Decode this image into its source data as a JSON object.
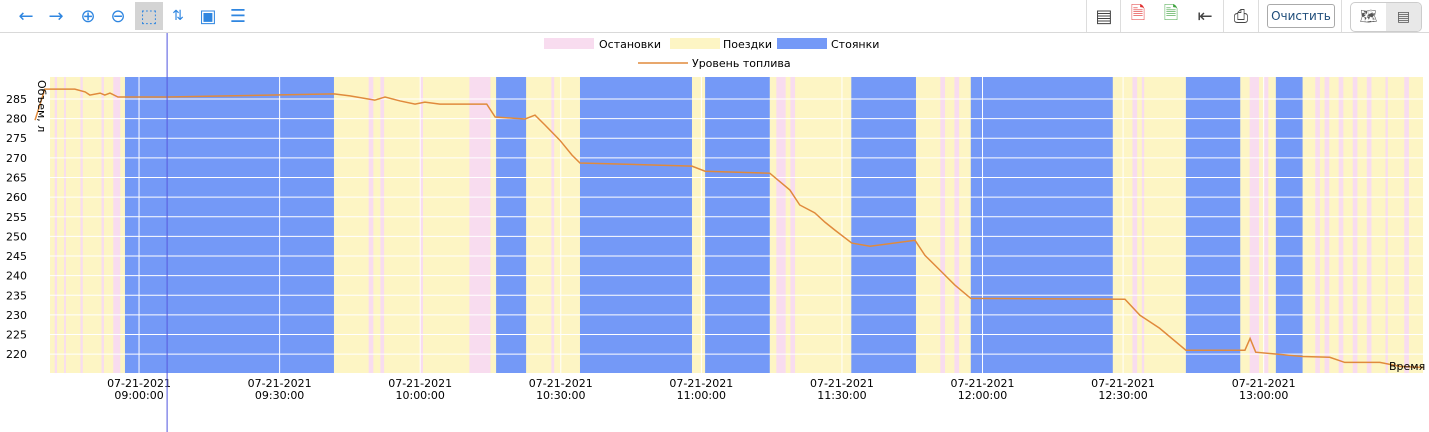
{
  "toolbar": {
    "clear_label": "Очистить"
  },
  "legend": {
    "stops": "Остановки",
    "trips": "Поездки",
    "parking": "Стоянки",
    "fuel": "Уровень топлива"
  },
  "colors": {
    "stops": "#f8dcef",
    "trips": "#fdf5c4",
    "parking": "#7499f7",
    "fuel": "#e08a3c",
    "cursor": "#5a5ee0"
  },
  "chart_data": {
    "type": "line",
    "ylabel": "Объем, л",
    "xlabel": "Время",
    "x_unit": "minutes from 07-21-2021 09:00:00",
    "xlim": [
      -19,
      274
    ],
    "ylim": [
      215.2,
      290.6
    ],
    "yticks": [
      220,
      225,
      230,
      235,
      240,
      245,
      250,
      255,
      260,
      265,
      270,
      275,
      280,
      285
    ],
    "xticks": [
      {
        "x": 0,
        "date": "07-21-2021",
        "time": "09:00:00"
      },
      {
        "x": 30,
        "date": "07-21-2021",
        "time": "09:30:00"
      },
      {
        "x": 60,
        "date": "07-21-2021",
        "time": "10:00:00"
      },
      {
        "x": 90,
        "date": "07-21-2021",
        "time": "10:30:00"
      },
      {
        "x": 120,
        "date": "07-21-2021",
        "time": "11:00:00"
      },
      {
        "x": 150,
        "date": "07-21-2021",
        "time": "11:30:00"
      },
      {
        "x": 180,
        "date": "07-21-2021",
        "time": "12:00:00"
      },
      {
        "x": 210,
        "date": "07-21-2021",
        "time": "12:30:00"
      },
      {
        "x": 240,
        "date": "07-21-2021",
        "time": "13:00:00"
      }
    ],
    "parking": [
      [
        -3,
        41.6
      ],
      [
        76.2,
        82.6
      ],
      [
        94.1,
        118
      ],
      [
        120.8,
        134.6
      ],
      [
        152,
        165.8
      ],
      [
        177.5,
        207.8
      ],
      [
        223.4,
        235
      ],
      [
        242.6,
        248.3
      ]
    ],
    "stops": [
      [
        -18,
        -17.5
      ],
      [
        -16,
        -15.6
      ],
      [
        -12.5,
        -12
      ],
      [
        -8,
        -7.5
      ],
      [
        -5.5,
        -4
      ],
      [
        49,
        50
      ],
      [
        51.5,
        52.3
      ],
      [
        60,
        60.6
      ],
      [
        70.5,
        75
      ],
      [
        88,
        88.6
      ],
      [
        128,
        128.5
      ],
      [
        136,
        138
      ],
      [
        139,
        140
      ],
      [
        171,
        172
      ],
      [
        174,
        175
      ],
      [
        212,
        213
      ],
      [
        214,
        214.5
      ],
      [
        237,
        239
      ],
      [
        240,
        241
      ],
      [
        251,
        252
      ],
      [
        253,
        254
      ],
      [
        256,
        257
      ],
      [
        259,
        260
      ],
      [
        262,
        263
      ],
      [
        266,
        266.5
      ],
      [
        270,
        271
      ]
    ],
    "cursor_x": 6,
    "fuel": [
      [
        -22.2,
        279.6
      ],
      [
        -20.1,
        287.5
      ],
      [
        -13.7,
        287.5
      ],
      [
        -11.5,
        286.8
      ],
      [
        -10.5,
        286
      ],
      [
        -8.3,
        286.5
      ],
      [
        -7.3,
        286
      ],
      [
        -6.2,
        286.5
      ],
      [
        -4.5,
        285.5
      ],
      [
        6,
        285.5
      ],
      [
        41.6,
        286.3
      ],
      [
        45,
        285.8
      ],
      [
        50.3,
        284.7
      ],
      [
        52.5,
        285.5
      ],
      [
        55.7,
        284.5
      ],
      [
        58.9,
        283.7
      ],
      [
        61,
        284.2
      ],
      [
        64.2,
        283.7
      ],
      [
        74.2,
        283.7
      ],
      [
        76,
        280.4
      ],
      [
        82.4,
        279.9
      ],
      [
        84.5,
        280.9
      ],
      [
        86.6,
        278.4
      ],
      [
        89.8,
        274.5
      ],
      [
        92.4,
        270.7
      ],
      [
        94.1,
        268.7
      ],
      [
        118,
        267.9
      ],
      [
        120.8,
        266.6
      ],
      [
        134.6,
        266.1
      ],
      [
        138.9,
        261.8
      ],
      [
        141,
        258
      ],
      [
        144.2,
        256
      ],
      [
        146.4,
        253.6
      ],
      [
        148.5,
        251.6
      ],
      [
        152.1,
        248.3
      ],
      [
        156,
        247.5
      ],
      [
        165.6,
        249
      ],
      [
        167.7,
        245.2
      ],
      [
        170.9,
        241.4
      ],
      [
        174.1,
        237.6
      ],
      [
        177.5,
        234.2
      ],
      [
        210.4,
        234
      ],
      [
        213.6,
        229.9
      ],
      [
        217.8,
        226.6
      ],
      [
        223.4,
        221
      ],
      [
        236,
        221
      ],
      [
        237.1,
        224
      ],
      [
        238.3,
        220.5
      ],
      [
        248.3,
        219.4
      ],
      [
        254.1,
        219.2
      ],
      [
        257.3,
        217.9
      ],
      [
        264.8,
        217.9
      ],
      [
        269,
        216.9
      ],
      [
        274,
        216.6
      ]
    ]
  }
}
